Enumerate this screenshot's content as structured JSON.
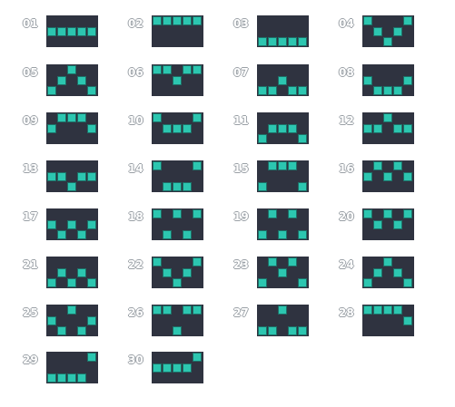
{
  "colors": {
    "box": "#2f3340",
    "square": "#2cc6b0",
    "square_border": "#1e6f67",
    "number_outline": "#9aa0a6"
  },
  "patterns": [
    {
      "label": "01",
      "rows": [
        "00000",
        "11111",
        "00000"
      ]
    },
    {
      "label": "02",
      "rows": [
        "11111",
        "00000",
        "00000"
      ]
    },
    {
      "label": "03",
      "rows": [
        "00000",
        "00000",
        "11111"
      ]
    },
    {
      "label": "04",
      "rows": [
        "10001",
        "01010",
        "00100"
      ]
    },
    {
      "label": "05",
      "rows": [
        "00100",
        "01010",
        "10001"
      ]
    },
    {
      "label": "06",
      "rows": [
        "11011",
        "00100",
        "00000"
      ]
    },
    {
      "label": "07",
      "rows": [
        "00000",
        "00100",
        "11011"
      ]
    },
    {
      "label": "08",
      "rows": [
        "00000",
        "10001",
        "01110"
      ]
    },
    {
      "label": "09",
      "rows": [
        "01110",
        "10001",
        "00000"
      ]
    },
    {
      "label": "10",
      "rows": [
        "10001",
        "01110",
        "00000"
      ]
    },
    {
      "label": "11",
      "rows": [
        "00000",
        "01110",
        "10001"
      ]
    },
    {
      "label": "12",
      "rows": [
        "00100",
        "11011",
        "00000"
      ]
    },
    {
      "label": "13",
      "rows": [
        "00000",
        "11011",
        "00100"
      ]
    },
    {
      "label": "14",
      "rows": [
        "10001",
        "00000",
        "01110"
      ]
    },
    {
      "label": "15",
      "rows": [
        "01110",
        "00000",
        "10001"
      ]
    },
    {
      "label": "16",
      "rows": [
        "01010",
        "10101",
        "00000"
      ]
    },
    {
      "label": "17",
      "rows": [
        "00000",
        "10101",
        "01010"
      ]
    },
    {
      "label": "18",
      "rows": [
        "10101",
        "00000",
        "01010"
      ]
    },
    {
      "label": "19",
      "rows": [
        "01010",
        "00000",
        "10101"
      ]
    },
    {
      "label": "20",
      "rows": [
        "10101",
        "01010",
        "00000"
      ]
    },
    {
      "label": "21",
      "rows": [
        "00000",
        "01010",
        "10101"
      ]
    },
    {
      "label": "22",
      "rows": [
        "10001",
        "01010",
        "00100"
      ]
    },
    {
      "label": "23",
      "rows": [
        "01010",
        "00100",
        "10001"
      ]
    },
    {
      "label": "24",
      "rows": [
        "00100",
        "01010",
        "10001"
      ]
    },
    {
      "label": "25",
      "rows": [
        "00100",
        "10001",
        "01010"
      ]
    },
    {
      "label": "26",
      "rows": [
        "11011",
        "00000",
        "00100"
      ]
    },
    {
      "label": "27",
      "rows": [
        "00100",
        "00000",
        "11011"
      ]
    },
    {
      "label": "28",
      "rows": [
        "11110",
        "00001",
        "00000"
      ]
    },
    {
      "label": "29",
      "rows": [
        "00001",
        "00000",
        "11110"
      ]
    },
    {
      "label": "30",
      "rows": [
        "00001",
        "11110",
        "00000"
      ]
    }
  ]
}
